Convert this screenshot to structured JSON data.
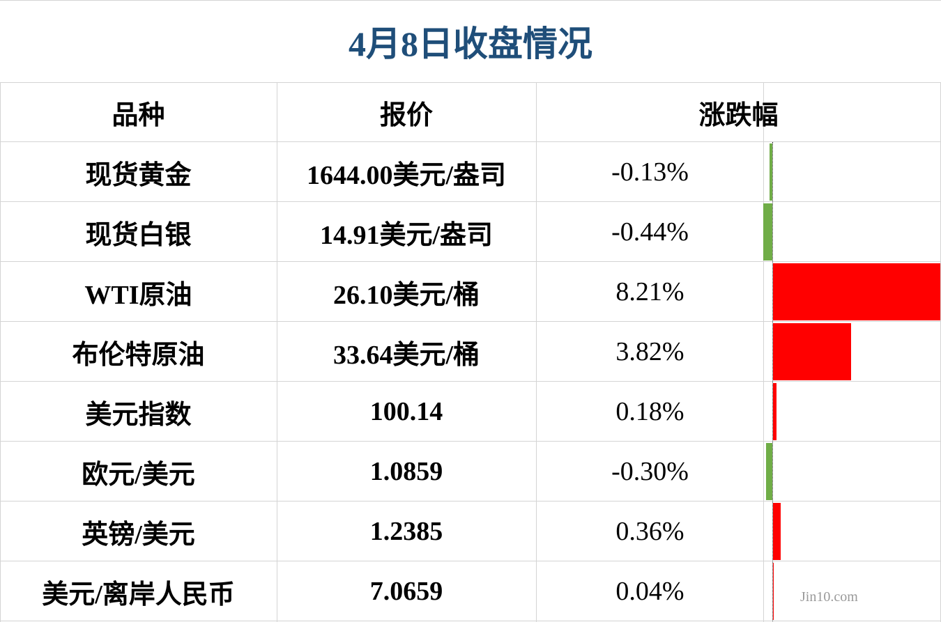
{
  "header": {
    "title": "4月8日收盘情况"
  },
  "table": {
    "columns": [
      "品种",
      "报价",
      "涨跌幅"
    ],
    "rows": [
      {
        "name": "现货黄金",
        "price": "1644.00美元/盎司",
        "change": {
          "value": -0.13,
          "label": "-0.13%"
        }
      },
      {
        "name": "现货白银",
        "price": "14.91美元/盎司",
        "change": {
          "value": -0.44,
          "label": "-0.44%"
        }
      },
      {
        "name": "WTI原油",
        "price": "26.10美元/桶",
        "change": {
          "value": 8.21,
          "label": "8.21%"
        }
      },
      {
        "name": "布伦特原油",
        "price": "33.64美元/桶",
        "change": {
          "value": 3.82,
          "label": "3.82%"
        }
      },
      {
        "name": "美元指数",
        "price": "100.14",
        "change": {
          "value": 0.18,
          "label": "0.18%"
        }
      },
      {
        "name": "欧元/美元",
        "price": "1.0859",
        "change": {
          "value": -0.3,
          "label": "-0.30%"
        }
      },
      {
        "name": "英镑/美元",
        "price": "1.2385",
        "change": {
          "value": 0.36,
          "label": "0.36%"
        }
      },
      {
        "name": "美元/离岸人民币",
        "price": "7.0659",
        "change": {
          "value": 0.04,
          "label": "0.04%"
        }
      }
    ],
    "bar_colors": {
      "positive": "#ff0000",
      "negative": "#70ad47"
    }
  },
  "watermark": "Jin10.com"
}
